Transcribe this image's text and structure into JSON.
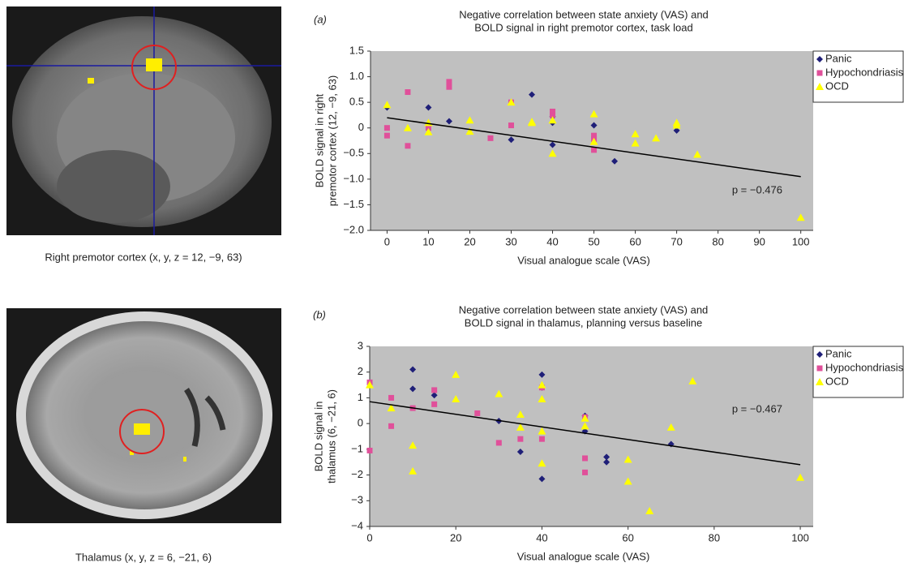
{
  "images": [
    {
      "caption": "Right premotor cortex (x, y, z = 12, −9, 63)"
    },
    {
      "caption": "Thalamus (x, y, z = 6, −21, 6)"
    }
  ],
  "chart_data": [
    {
      "type": "scatter",
      "panel": "(a)",
      "title": [
        "Negative correlation between state anxiety (VAS) and",
        "BOLD signal in right premotor cortex, task load"
      ],
      "xlabel": "Visual analogue scale (VAS)",
      "ylabel": [
        "BOLD signal in right",
        "premotor cortex (12, −9, 63)"
      ],
      "xlim": [
        -4,
        103
      ],
      "xticks": [
        0,
        10,
        20,
        30,
        40,
        50,
        60,
        70,
        80,
        90,
        100
      ],
      "ylim": [
        -2,
        1.5
      ],
      "yticks": [
        {
          "value": -2,
          "label": "−2.0"
        },
        {
          "value": -1.5,
          "label": "−1.5"
        },
        {
          "value": -1,
          "label": "−1.0"
        },
        {
          "value": -0.5,
          "label": "−0.5"
        },
        0,
        0.5,
        {
          "value": 1,
          "label": "1.0"
        },
        1.5
      ],
      "grid": false,
      "legend": "right",
      "background": "#c0c0c0",
      "series": [
        {
          "name": "Panic",
          "color": "#1f1f78",
          "marker": "diamond",
          "x": [
            0,
            10,
            15,
            30,
            35,
            40,
            40,
            40,
            50,
            55,
            70
          ],
          "values": [
            0.4,
            0.4,
            0.13,
            -0.23,
            0.65,
            0.22,
            -0.33,
            0.1,
            0.05,
            -0.65,
            -0.05
          ]
        },
        {
          "name": "Hypochondriasis",
          "color": "#e0509a",
          "marker": "square",
          "x": [
            0,
            0,
            5,
            5,
            10,
            15,
            15,
            25,
            30,
            30,
            40,
            40,
            50,
            50,
            50
          ],
          "values": [
            -0.15,
            0.0,
            0.7,
            -0.35,
            0.0,
            0.9,
            0.8,
            -0.2,
            0.5,
            0.05,
            0.32,
            0.25,
            -0.15,
            -0.43,
            -0.22
          ]
        },
        {
          "name": "OCD",
          "color": "#ffff00",
          "marker": "triangle",
          "x": [
            0,
            5,
            10,
            10,
            20,
            20,
            30,
            35,
            35,
            40,
            40,
            50,
            50,
            60,
            60,
            65,
            70,
            70,
            75,
            100
          ],
          "values": [
            0.45,
            0.0,
            0.1,
            -0.08,
            0.15,
            -0.07,
            0.5,
            0.12,
            0.1,
            -0.5,
            0.15,
            0.27,
            -0.27,
            -0.12,
            -0.3,
            -0.2,
            0.1,
            0.05,
            -0.52,
            -1.75
          ]
        }
      ],
      "trendline": {
        "x": [
          0,
          100
        ],
        "y": [
          0.2,
          -0.95
        ]
      },
      "annotation": "p = −0.476"
    },
    {
      "type": "scatter",
      "panel": "(b)",
      "title": [
        "Negative correlation between state anxiety (VAS) and",
        "BOLD signal in thalamus, planning versus baseline"
      ],
      "xlabel": "Visual analogue scale (VAS)",
      "ylabel": [
        "BOLD signal in",
        "thalamus (6, −21, 6)"
      ],
      "xlim": [
        0,
        103
      ],
      "xticks": [
        0,
        20,
        40,
        60,
        80,
        100
      ],
      "ylim": [
        -4,
        3
      ],
      "yticks": [
        {
          "value": -4,
          "label": "−4"
        },
        {
          "value": -3,
          "label": "−3"
        },
        {
          "value": -2,
          "label": "−2"
        },
        {
          "value": -1,
          "label": "−1"
        },
        0,
        1,
        2,
        3
      ],
      "grid": false,
      "legend": "right",
      "background": "#c0c0c0",
      "series": [
        {
          "name": "Panic",
          "color": "#1f1f78",
          "marker": "diamond",
          "x": [
            10,
            10,
            15,
            30,
            35,
            40,
            40,
            40,
            50,
            50,
            55,
            55,
            70
          ],
          "values": [
            2.1,
            1.35,
            1.1,
            0.1,
            -1.1,
            1.9,
            1.4,
            -2.15,
            0.3,
            -0.3,
            -1.3,
            -1.5,
            -0.8
          ]
        },
        {
          "name": "Hypochondriasis",
          "color": "#e0509a",
          "marker": "square",
          "x": [
            0,
            0,
            5,
            5,
            10,
            15,
            15,
            25,
            30,
            35,
            40,
            40,
            50,
            50,
            50
          ],
          "values": [
            1.6,
            -1.05,
            1.0,
            -0.1,
            0.6,
            1.3,
            0.75,
            0.4,
            -0.75,
            -0.6,
            1.4,
            -0.6,
            -1.35,
            -1.9,
            0.25
          ]
        },
        {
          "name": "OCD",
          "color": "#ffff00",
          "marker": "triangle",
          "x": [
            0,
            5,
            10,
            10,
            20,
            20,
            30,
            35,
            35,
            40,
            40,
            40,
            40,
            50,
            50,
            60,
            60,
            65,
            70,
            75,
            100
          ],
          "values": [
            1.5,
            0.6,
            -0.85,
            -1.85,
            1.9,
            0.95,
            1.15,
            0.35,
            -0.15,
            1.5,
            0.95,
            -0.3,
            -1.55,
            0.2,
            -0.1,
            -1.4,
            -2.25,
            -3.4,
            -0.15,
            1.65,
            -2.1
          ]
        }
      ],
      "trendline": {
        "x": [
          0,
          100
        ],
        "y": [
          0.85,
          -1.6
        ]
      },
      "annotation": "p = −0.467"
    }
  ]
}
